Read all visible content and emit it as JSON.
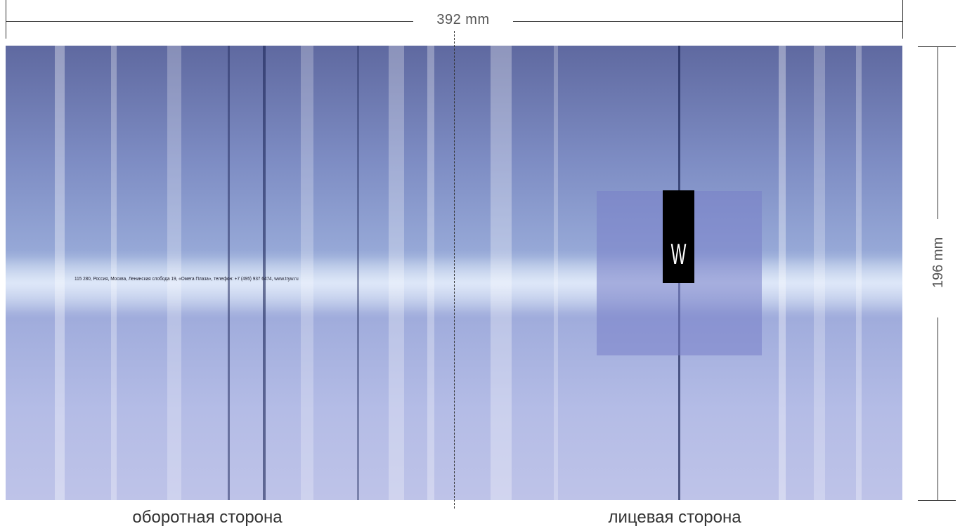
{
  "dimensions": {
    "width_label": "392 mm",
    "height_label": "196 mm"
  },
  "cover": {
    "address_text": "115 280, Россия, Москва, Ленинская слобода 19, «Омега Плаза», телефон: +7 (495) 937 6474, www.tryw.ru",
    "logo_letter": "W"
  },
  "labels": {
    "back_side": "оборотная сторона",
    "front_side": "лицевая сторона"
  },
  "colors": {
    "logo_block": "#000000",
    "logo_panel": "#7880C8",
    "dimension_line": "#333333"
  }
}
